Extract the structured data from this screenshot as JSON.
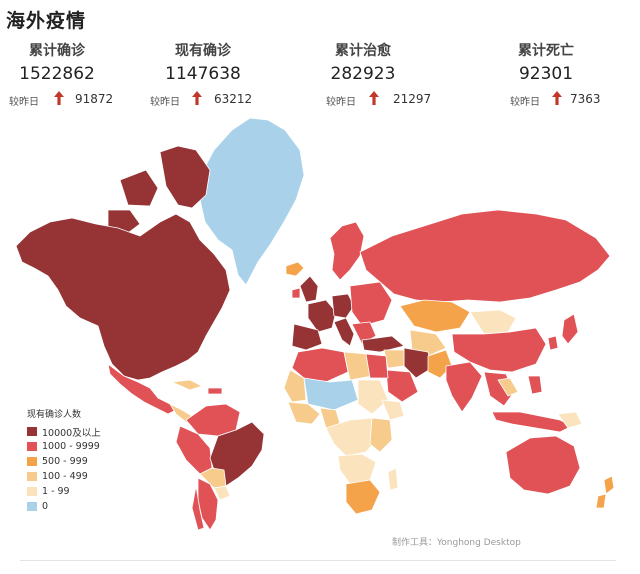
{
  "page": {
    "title": "海外疫情"
  },
  "stats": [
    {
      "label": "累计确诊",
      "value": "1522862",
      "compare_label": "较昨日",
      "delta": "91872"
    },
    {
      "label": "现有确诊",
      "value": "1147638",
      "compare_label": "较昨日",
      "delta": "63212"
    },
    {
      "label": "累计治愈",
      "value": "282923",
      "compare_label": "较昨日",
      "delta": "21297"
    },
    {
      "label": "累计死亡",
      "value": "92301",
      "compare_label": "较昨日",
      "delta": "7363"
    }
  ],
  "colors": {
    "level_10000_plus": "#953335",
    "level_1000_9999": "#e05255",
    "level_500_999": "#f4a34a",
    "level_100_499": "#f6cb8b",
    "level_1_99": "#fbe3bd",
    "level_0": "#a9d2ea",
    "arrow_up": "#c0392b"
  },
  "legend": {
    "title": "现有确诊人数",
    "items": [
      {
        "label": "10000及以上",
        "color": "#953335"
      },
      {
        "label": "1000 - 9999",
        "color": "#e05255"
      },
      {
        "label": "500 - 999",
        "color": "#f4a34a"
      },
      {
        "label": "100 - 499",
        "color": "#f6cb8b"
      },
      {
        "label": "1 - 99",
        "color": "#fbe3bd"
      },
      {
        "label": "0",
        "color": "#a9d2ea"
      }
    ]
  },
  "credit": "制作工具：Yonghong Desktop"
}
